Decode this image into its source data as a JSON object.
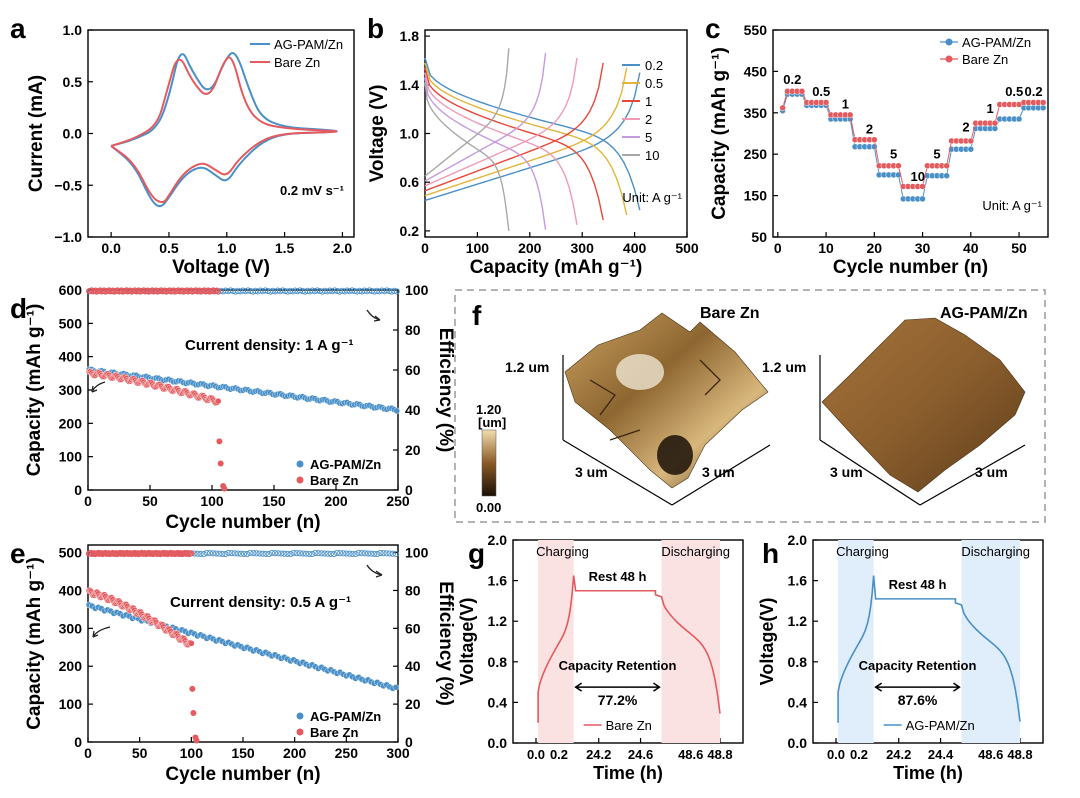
{
  "colors": {
    "blue": "#4a90c8",
    "red": "#e45a5e",
    "pink_shade": "#fbe2e2",
    "blue_shade": "#dfeefa",
    "axis": "#000000",
    "dash": "#9a9a9a"
  },
  "panels": {
    "a": "a",
    "b": "b",
    "c": "c",
    "d": "d",
    "e": "e",
    "f": "f",
    "g": "g",
    "h": "h"
  },
  "chart_data": [
    {
      "id": "a",
      "type": "line",
      "xlabel": "Voltage (V)",
      "ylabel": "Current (mA)",
      "xlim": [
        -0.2,
        2.1
      ],
      "ylim": [
        -1.0,
        1.0
      ],
      "xticks": [
        "0.0",
        "0.5",
        "1.0",
        "1.5",
        "2.0"
      ],
      "xtick_vals": [
        0,
        0.5,
        1,
        1.5,
        2
      ],
      "yticks": [
        "−1.0",
        "−0.5",
        "0.0",
        "0.5",
        "1.0"
      ],
      "ytick_vals": [
        -1,
        -0.5,
        0,
        0.5,
        1
      ],
      "annotation": "0.2 mV s⁻¹",
      "series": [
        {
          "name": "AG-PAM/Zn",
          "color": "#4a90c8",
          "x": [
            0.0,
            0.2,
            0.4,
            0.5,
            0.6,
            0.7,
            0.85,
            1.0,
            1.08,
            1.2,
            1.3,
            1.5,
            1.8,
            2.0,
            1.8,
            1.5,
            1.3,
            1.1,
            1.0,
            0.9,
            0.8,
            0.7,
            0.6,
            0.5,
            0.43,
            0.35,
            0.2,
            0.0
          ],
          "y": [
            -0.12,
            -0.06,
            0.05,
            0.35,
            0.85,
            0.6,
            0.35,
            0.75,
            0.8,
            0.4,
            0.15,
            0.06,
            0.04,
            0.02,
            0.01,
            0.0,
            -0.08,
            -0.3,
            -0.48,
            -0.4,
            -0.32,
            -0.35,
            -0.45,
            -0.62,
            -0.72,
            -0.66,
            -0.3,
            -0.12
          ]
        },
        {
          "name": "Bare Zn",
          "color": "#e45a5e",
          "x": [
            0.0,
            0.2,
            0.4,
            0.48,
            0.58,
            0.7,
            0.85,
            0.98,
            1.05,
            1.15,
            1.28,
            1.5,
            1.8,
            2.0,
            1.8,
            1.5,
            1.3,
            1.1,
            1.0,
            0.9,
            0.8,
            0.7,
            0.6,
            0.5,
            0.45,
            0.35,
            0.2,
            0.0
          ],
          "y": [
            -0.12,
            -0.05,
            0.08,
            0.4,
            0.8,
            0.5,
            0.32,
            0.72,
            0.75,
            0.3,
            0.1,
            0.05,
            0.03,
            0.02,
            0.01,
            0.0,
            -0.06,
            -0.25,
            -0.42,
            -0.35,
            -0.28,
            -0.32,
            -0.42,
            -0.6,
            -0.68,
            -0.62,
            -0.28,
            -0.12
          ]
        }
      ]
    },
    {
      "id": "b",
      "type": "line",
      "xlabel": "Capacity (mAh g⁻¹)",
      "ylabel": "Voltage (V)",
      "xlim": [
        0,
        500
      ],
      "ylim": [
        0.15,
        1.85
      ],
      "xticks": [
        "0",
        "100",
        "200",
        "300",
        "400",
        "500"
      ],
      "xtick_vals": [
        0,
        100,
        200,
        300,
        400,
        500
      ],
      "yticks": [
        "0.2",
        "0.6",
        "1.0",
        "1.4",
        "1.8"
      ],
      "ytick_vals": [
        0.2,
        0.6,
        1.0,
        1.4,
        1.8
      ],
      "legend_title": "",
      "unit_note": "Unit: A g⁻¹",
      "series": [
        {
          "name": "0.2",
          "color": "#4a90c8",
          "capacity": 410
        },
        {
          "name": "0.5",
          "color": "#e2b53a",
          "capacity": 385
        },
        {
          "name": "1",
          "color": "#e8473a",
          "capacity": 340
        },
        {
          "name": "2",
          "color": "#ef9bb6",
          "capacity": 290
        },
        {
          "name": "5",
          "color": "#c59be0",
          "capacity": 230
        },
        {
          "name": "10",
          "color": "#a8a8a8",
          "capacity": 160
        }
      ]
    },
    {
      "id": "c",
      "type": "scatter",
      "xlabel": "Cycle number (n)",
      "ylabel": "Capacity (mAh g⁻¹)",
      "xlim": [
        -1,
        56
      ],
      "ylim": [
        50,
        550
      ],
      "xticks": [
        "0",
        "10",
        "20",
        "30",
        "40",
        "50"
      ],
      "xtick_vals": [
        0,
        10,
        20,
        30,
        40,
        50
      ],
      "yticks": [
        "50",
        "150",
        "250",
        "350",
        "450",
        "550"
      ],
      "ytick_vals": [
        50,
        150,
        250,
        350,
        450,
        550
      ],
      "unit_note": "Unit: A g⁻¹",
      "rate_labels": [
        "0.2",
        "0.5",
        "1",
        "2",
        "5",
        "10",
        "5",
        "2",
        "1",
        "0.5",
        "0.2"
      ],
      "rate_label_x": [
        3,
        9,
        14,
        19,
        24,
        29,
        33,
        39,
        44,
        49,
        53
      ],
      "rate_label_y": [
        420,
        390,
        360,
        300,
        240,
        185,
        240,
        305,
        350,
        390,
        390
      ],
      "series": [
        {
          "name": "AG-PAM/Zn",
          "color": "#4a90c8",
          "steps": [
            395,
            368,
            335,
            268,
            200,
            142,
            198,
            262,
            312,
            335,
            362
          ]
        },
        {
          "name": "Bare Zn",
          "color": "#e45a5e",
          "steps": [
            402,
            375,
            345,
            285,
            222,
            172,
            222,
            282,
            325,
            370,
            375
          ]
        }
      ]
    },
    {
      "id": "d",
      "type": "scatter",
      "xlabel": "Cycle number (n)",
      "ylabel": "Capacity (mAh g⁻¹)",
      "y2label": "Efficiency (%)",
      "xlim": [
        0,
        250
      ],
      "ylim": [
        0,
        600
      ],
      "y2lim": [
        0,
        100
      ],
      "xticks": [
        "0",
        "50",
        "100",
        "150",
        "200",
        "250"
      ],
      "xtick_vals": [
        0,
        50,
        100,
        150,
        200,
        250
      ],
      "yticks": [
        "0",
        "100",
        "200",
        "300",
        "400",
        "500",
        "600"
      ],
      "ytick_vals": [
        0,
        100,
        200,
        300,
        400,
        500,
        600
      ],
      "y2ticks": [
        "0",
        "20",
        "40",
        "60",
        "80",
        "100"
      ],
      "y2tick_vals": [
        0,
        20,
        40,
        60,
        80,
        100
      ],
      "annotation": "Current density: 1 A g⁻¹",
      "series": [
        {
          "name": "AG-PAM/Zn",
          "color": "#4a90c8",
          "start": 360,
          "end": 240,
          "cycles": 250
        },
        {
          "name": "Bare Zn",
          "color": "#e45a5e",
          "start": 350,
          "end": 265,
          "cycles": 105
        }
      ]
    },
    {
      "id": "e",
      "type": "scatter",
      "xlabel": "Cycle number (n)",
      "ylabel": "Capacity (mAh g⁻¹)",
      "y2label": "Efficiency (%)",
      "xlim": [
        0,
        300
      ],
      "ylim": [
        0,
        520
      ],
      "y2lim": [
        0,
        104
      ],
      "xticks": [
        "0",
        "50",
        "100",
        "150",
        "200",
        "250",
        "300"
      ],
      "xtick_vals": [
        0,
        50,
        100,
        150,
        200,
        250,
        300
      ],
      "yticks": [
        "0",
        "100",
        "200",
        "300",
        "400",
        "500"
      ],
      "ytick_vals": [
        0,
        100,
        200,
        300,
        400,
        500
      ],
      "y2ticks": [
        "0",
        "20",
        "40",
        "60",
        "80",
        "100"
      ],
      "y2tick_vals": [
        0,
        20,
        40,
        60,
        80,
        100
      ],
      "annotation": "Current density: 0.5 A g⁻¹",
      "series": [
        {
          "name": "AG-PAM/Zn",
          "color": "#4a90c8",
          "start": 360,
          "end": 140,
          "cycles": 300
        },
        {
          "name": "Bare Zn",
          "color": "#e45a5e",
          "start": 395,
          "end": 255,
          "cycles": 100
        }
      ]
    },
    {
      "id": "g",
      "type": "line",
      "xlabel": "Time (h)",
      "ylabel": "Voltage(V)",
      "ylim": [
        0.0,
        2.0
      ],
      "xticks": [
        "0.0",
        "0.2",
        "24.2",
        "24.6",
        "48.6",
        "48.8"
      ],
      "yticks": [
        "0.0",
        "0.4",
        "0.8",
        "1.2",
        "1.6",
        "2.0"
      ],
      "ytick_vals": [
        0,
        0.4,
        0.8,
        1.2,
        1.6,
        2.0
      ],
      "labels": {
        "charging": "Charging",
        "discharging": "Discharging",
        "rest": "Rest 48 h",
        "retention_label": "Capacity Retention",
        "retention": "77.2%"
      },
      "series": [
        {
          "name": "Bare Zn",
          "color": "#e45a5e",
          "rest_voltage": 1.5,
          "retention_pct": 77.2
        }
      ]
    },
    {
      "id": "h",
      "type": "line",
      "xlabel": "Time (h)",
      "ylabel": "Voltage(V)",
      "ylim": [
        0.0,
        2.0
      ],
      "xticks": [
        "0.0",
        "0.2",
        "24.2",
        "24.4",
        "48.6",
        "48.8"
      ],
      "yticks": [
        "0.0",
        "0.4",
        "0.8",
        "1.2",
        "1.6",
        "2.0"
      ],
      "ytick_vals": [
        0,
        0.4,
        0.8,
        1.2,
        1.6,
        2.0
      ],
      "labels": {
        "charging": "Charging",
        "discharging": "Discharging",
        "rest": "Rest 48 h",
        "retention_label": "Capacity Retention",
        "retention": "87.6%"
      },
      "series": [
        {
          "name": "AG-PAM/Zn",
          "color": "#4a90c8",
          "rest_voltage": 1.42,
          "retention_pct": 87.6
        }
      ]
    }
  ],
  "afm": {
    "bare_title": "Bare Zn",
    "ag_title": "AG-PAM/Zn",
    "height_label": "1.2 um",
    "x_label": "3 um",
    "y_label": "3 um",
    "scale_max": "1.20",
    "scale_unit": "[um]",
    "scale_min": "0.00"
  }
}
